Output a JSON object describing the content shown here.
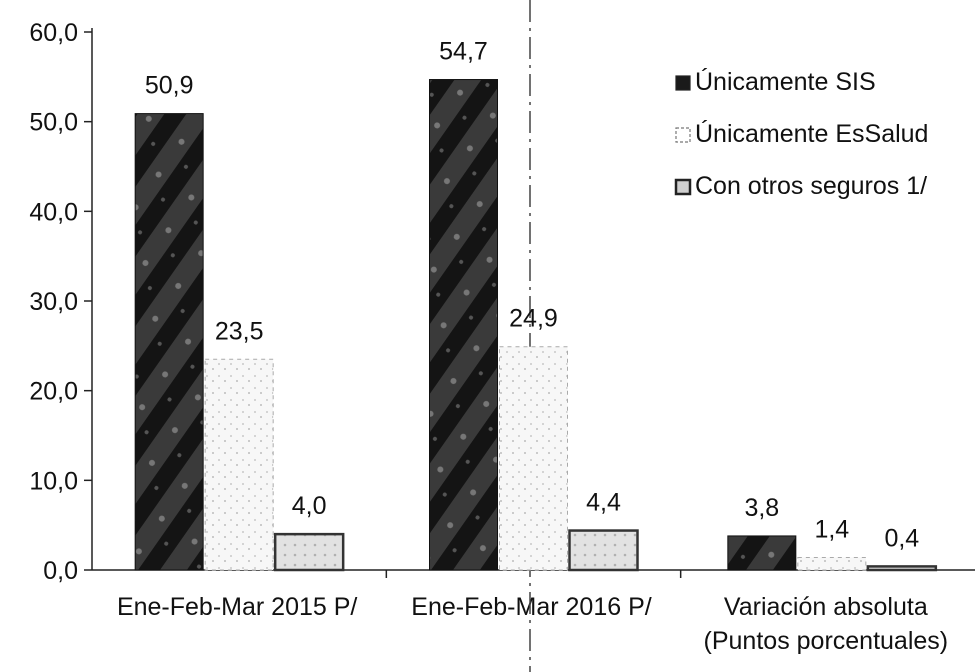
{
  "chart_data": {
    "type": "bar",
    "categories": [
      [
        "Ene-Feb-Mar  2015 P/"
      ],
      [
        "Ene-Feb-Mar  2016 P/"
      ],
      [
        "Variación absoluta",
        "(Puntos porcentuales)"
      ]
    ],
    "series": [
      {
        "name": "Únicamente SIS",
        "values": [
          50.9,
          54.7,
          3.8
        ],
        "labels": [
          "50,9",
          "54,7",
          "3,8"
        ]
      },
      {
        "name": "Únicamente EsSalud",
        "values": [
          23.5,
          24.9,
          1.4
        ],
        "labels": [
          "23,5",
          "24,9",
          "1,4"
        ]
      },
      {
        "name": "Con otros seguros 1/",
        "values": [
          4.0,
          4.4,
          0.4
        ],
        "labels": [
          "4,0",
          "4,4",
          "0,4"
        ]
      }
    ],
    "ylim": [
      0,
      60
    ],
    "yticks": [
      0,
      10,
      20,
      30,
      40,
      50,
      60
    ],
    "ytick_labels": [
      "0,0",
      "10,0",
      "20,0",
      "30,0",
      "40,0",
      "50,0",
      "60,0"
    ],
    "legend_placement": "top-right",
    "grid": false,
    "colors": {
      "sis": "#2b2b2b",
      "essalud_fill": "#f3f3f3",
      "otros_fill": "#dcdcdc",
      "otros_border": "#333333"
    }
  }
}
